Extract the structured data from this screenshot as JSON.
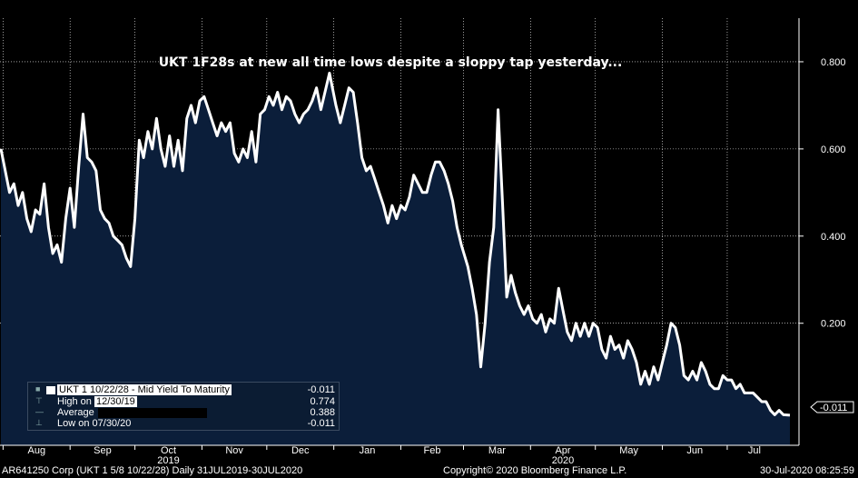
{
  "chart_data": {
    "type": "area",
    "title": "UKT 1F28s at new all time lows despite a sloppy tap yesterday...",
    "xlabel": "",
    "ylabel": "",
    "ylim": [
      -0.08,
      0.9
    ],
    "y_ticks": [
      "0.800",
      "0.600",
      "0.400",
      "0.200"
    ],
    "y_tick_values": [
      0.8,
      0.6,
      0.4,
      0.2
    ],
    "x_ticks": [
      {
        "label": "Aug",
        "date": "2019-08-01"
      },
      {
        "label": "Sep",
        "date": "2019-09-01"
      },
      {
        "label": "Oct",
        "date": "2019-10-01"
      },
      {
        "label": "Nov",
        "date": "2019-11-01"
      },
      {
        "label": "Dec",
        "date": "2019-12-01"
      },
      {
        "label": "Jan",
        "date": "2020-01-01"
      },
      {
        "label": "Feb",
        "date": "2020-02-01"
      },
      {
        "label": "Mar",
        "date": "2020-03-01"
      },
      {
        "label": "Apr",
        "date": "2020-04-01"
      },
      {
        "label": "May",
        "date": "2020-05-01"
      },
      {
        "label": "Jun",
        "date": "2020-06-01"
      },
      {
        "label": "Jul",
        "date": "2020-07-01"
      }
    ],
    "year_labels": [
      {
        "label": "2019",
        "date": "2019-10-01"
      },
      {
        "label": "2020",
        "date": "2020-04-01"
      }
    ],
    "last_value_label": "-0.011",
    "series": [
      {
        "name": "UKT 1  10/22/28 - Mid Yield To Maturity",
        "points": [
          [
            "2019-07-31",
            0.6
          ],
          [
            "2019-08-02",
            0.55
          ],
          [
            "2019-08-04",
            0.5
          ],
          [
            "2019-08-06",
            0.52
          ],
          [
            "2019-08-08",
            0.47
          ],
          [
            "2019-08-10",
            0.5
          ],
          [
            "2019-08-12",
            0.44
          ],
          [
            "2019-08-14",
            0.41
          ],
          [
            "2019-08-16",
            0.46
          ],
          [
            "2019-08-18",
            0.45
          ],
          [
            "2019-08-20",
            0.52
          ],
          [
            "2019-08-22",
            0.42
          ],
          [
            "2019-08-24",
            0.36
          ],
          [
            "2019-08-26",
            0.38
          ],
          [
            "2019-08-28",
            0.34
          ],
          [
            "2019-08-30",
            0.44
          ],
          [
            "2019-09-01",
            0.51
          ],
          [
            "2019-09-03",
            0.42
          ],
          [
            "2019-09-05",
            0.56
          ],
          [
            "2019-09-07",
            0.68
          ],
          [
            "2019-09-09",
            0.58
          ],
          [
            "2019-09-11",
            0.57
          ],
          [
            "2019-09-13",
            0.55
          ],
          [
            "2019-09-15",
            0.46
          ],
          [
            "2019-09-17",
            0.44
          ],
          [
            "2019-09-19",
            0.43
          ],
          [
            "2019-09-21",
            0.4
          ],
          [
            "2019-09-23",
            0.39
          ],
          [
            "2019-09-25",
            0.38
          ],
          [
            "2019-09-27",
            0.35
          ],
          [
            "2019-09-29",
            0.33
          ],
          [
            "2019-10-01",
            0.44
          ],
          [
            "2019-10-03",
            0.62
          ],
          [
            "2019-10-05",
            0.58
          ],
          [
            "2019-10-07",
            0.64
          ],
          [
            "2019-10-09",
            0.6
          ],
          [
            "2019-10-11",
            0.67
          ],
          [
            "2019-10-13",
            0.6
          ],
          [
            "2019-10-15",
            0.56
          ],
          [
            "2019-10-17",
            0.63
          ],
          [
            "2019-10-19",
            0.56
          ],
          [
            "2019-10-21",
            0.62
          ],
          [
            "2019-10-23",
            0.55
          ],
          [
            "2019-10-25",
            0.67
          ],
          [
            "2019-10-27",
            0.7
          ],
          [
            "2019-10-29",
            0.66
          ],
          [
            "2019-10-31",
            0.71
          ],
          [
            "2019-11-02",
            0.72
          ],
          [
            "2019-11-04",
            0.69
          ],
          [
            "2019-11-06",
            0.66
          ],
          [
            "2019-11-08",
            0.63
          ],
          [
            "2019-11-10",
            0.66
          ],
          [
            "2019-11-12",
            0.64
          ],
          [
            "2019-11-14",
            0.66
          ],
          [
            "2019-11-16",
            0.59
          ],
          [
            "2019-11-18",
            0.57
          ],
          [
            "2019-11-20",
            0.6
          ],
          [
            "2019-11-22",
            0.58
          ],
          [
            "2019-11-24",
            0.64
          ],
          [
            "2019-11-26",
            0.57
          ],
          [
            "2019-11-28",
            0.68
          ],
          [
            "2019-11-30",
            0.69
          ],
          [
            "2019-12-02",
            0.72
          ],
          [
            "2019-12-04",
            0.7
          ],
          [
            "2019-12-06",
            0.73
          ],
          [
            "2019-12-08",
            0.69
          ],
          [
            "2019-12-10",
            0.72
          ],
          [
            "2019-12-12",
            0.71
          ],
          [
            "2019-12-14",
            0.68
          ],
          [
            "2019-12-16",
            0.66
          ],
          [
            "2019-12-18",
            0.68
          ],
          [
            "2019-12-20",
            0.69
          ],
          [
            "2019-12-22",
            0.71
          ],
          [
            "2019-12-24",
            0.74
          ],
          [
            "2019-12-26",
            0.69
          ],
          [
            "2019-12-30",
            0.774
          ],
          [
            "2020-01-02",
            0.7
          ],
          [
            "2020-01-04",
            0.66
          ],
          [
            "2020-01-06",
            0.7
          ],
          [
            "2020-01-08",
            0.74
          ],
          [
            "2020-01-10",
            0.73
          ],
          [
            "2020-01-12",
            0.66
          ],
          [
            "2020-01-14",
            0.58
          ],
          [
            "2020-01-16",
            0.55
          ],
          [
            "2020-01-18",
            0.56
          ],
          [
            "2020-01-20",
            0.53
          ],
          [
            "2020-01-22",
            0.5
          ],
          [
            "2020-01-24",
            0.47
          ],
          [
            "2020-01-26",
            0.43
          ],
          [
            "2020-01-28",
            0.47
          ],
          [
            "2020-01-30",
            0.44
          ],
          [
            "2020-02-01",
            0.47
          ],
          [
            "2020-02-03",
            0.46
          ],
          [
            "2020-02-05",
            0.49
          ],
          [
            "2020-02-07",
            0.54
          ],
          [
            "2020-02-09",
            0.52
          ],
          [
            "2020-02-11",
            0.5
          ],
          [
            "2020-02-13",
            0.5
          ],
          [
            "2020-02-15",
            0.54
          ],
          [
            "2020-02-17",
            0.57
          ],
          [
            "2020-02-19",
            0.57
          ],
          [
            "2020-02-21",
            0.55
          ],
          [
            "2020-02-23",
            0.52
          ],
          [
            "2020-02-25",
            0.48
          ],
          [
            "2020-02-27",
            0.42
          ],
          [
            "2020-02-29",
            0.38
          ],
          [
            "2020-03-03",
            0.33
          ],
          [
            "2020-03-05",
            0.28
          ],
          [
            "2020-03-07",
            0.22
          ],
          [
            "2020-03-09",
            0.1
          ],
          [
            "2020-03-11",
            0.2
          ],
          [
            "2020-03-13",
            0.34
          ],
          [
            "2020-03-15",
            0.42
          ],
          [
            "2020-03-17",
            0.69
          ],
          [
            "2020-03-19",
            0.48
          ],
          [
            "2020-03-21",
            0.26
          ],
          [
            "2020-03-23",
            0.31
          ],
          [
            "2020-03-25",
            0.27
          ],
          [
            "2020-03-27",
            0.24
          ],
          [
            "2020-03-29",
            0.22
          ],
          [
            "2020-03-31",
            0.24
          ],
          [
            "2020-04-02",
            0.21
          ],
          [
            "2020-04-04",
            0.2
          ],
          [
            "2020-04-06",
            0.22
          ],
          [
            "2020-04-08",
            0.18
          ],
          [
            "2020-04-10",
            0.21
          ],
          [
            "2020-04-12",
            0.2
          ],
          [
            "2020-04-14",
            0.28
          ],
          [
            "2020-04-16",
            0.23
          ],
          [
            "2020-04-18",
            0.18
          ],
          [
            "2020-04-20",
            0.16
          ],
          [
            "2020-04-22",
            0.2
          ],
          [
            "2020-04-24",
            0.17
          ],
          [
            "2020-04-26",
            0.2
          ],
          [
            "2020-04-28",
            0.17
          ],
          [
            "2020-04-30",
            0.2
          ],
          [
            "2020-05-02",
            0.19
          ],
          [
            "2020-05-04",
            0.14
          ],
          [
            "2020-05-06",
            0.12
          ],
          [
            "2020-05-08",
            0.17
          ],
          [
            "2020-05-10",
            0.14
          ],
          [
            "2020-05-12",
            0.15
          ],
          [
            "2020-05-14",
            0.12
          ],
          [
            "2020-05-16",
            0.16
          ],
          [
            "2020-05-18",
            0.14
          ],
          [
            "2020-05-20",
            0.11
          ],
          [
            "2020-05-22",
            0.06
          ],
          [
            "2020-05-24",
            0.09
          ],
          [
            "2020-05-26",
            0.06
          ],
          [
            "2020-05-28",
            0.1
          ],
          [
            "2020-05-30",
            0.07
          ],
          [
            "2020-06-01",
            0.11
          ],
          [
            "2020-06-03",
            0.15
          ],
          [
            "2020-06-05",
            0.2
          ],
          [
            "2020-06-07",
            0.19
          ],
          [
            "2020-06-09",
            0.15
          ],
          [
            "2020-06-11",
            0.08
          ],
          [
            "2020-06-13",
            0.07
          ],
          [
            "2020-06-15",
            0.09
          ],
          [
            "2020-06-17",
            0.07
          ],
          [
            "2020-06-19",
            0.11
          ],
          [
            "2020-06-21",
            0.09
          ],
          [
            "2020-06-23",
            0.06
          ],
          [
            "2020-06-25",
            0.05
          ],
          [
            "2020-06-27",
            0.05
          ],
          [
            "2020-06-29",
            0.08
          ],
          [
            "2020-07-01",
            0.07
          ],
          [
            "2020-07-03",
            0.07
          ],
          [
            "2020-07-05",
            0.05
          ],
          [
            "2020-07-07",
            0.06
          ],
          [
            "2020-07-09",
            0.04
          ],
          [
            "2020-07-11",
            0.04
          ],
          [
            "2020-07-13",
            0.04
          ],
          [
            "2020-07-15",
            0.03
          ],
          [
            "2020-07-17",
            0.02
          ],
          [
            "2020-07-19",
            0.02
          ],
          [
            "2020-07-21",
            0.0
          ],
          [
            "2020-07-23",
            -0.01
          ],
          [
            "2020-07-25",
            0.0
          ],
          [
            "2020-07-27",
            -0.01
          ],
          [
            "2020-07-30",
            -0.011
          ]
        ]
      }
    ]
  },
  "legend": {
    "series_label": "UKT 1",
    "series_desc": "10/22/28 - Mid Yield To Maturity",
    "series_value": "-0.011",
    "high_label": "High on",
    "high_date": "12/30/19",
    "high_value": "0.774",
    "avg_label": "Average",
    "avg_value": "0.388",
    "low_label": "Low on 07/30/20",
    "low_value": "-0.011"
  },
  "footer": {
    "left": "AR641250 Corp (UKT 1 5/8 10/22/28)  Daily 31JUL2019-30JUL2020",
    "center": "Copyright© 2020 Bloomberg Finance L.P.",
    "right": "30-Jul-2020 08:25:59"
  },
  "colors": {
    "background": "#000000",
    "area_fill": "#0b1e3a",
    "line": "#ffffff",
    "grid": "#ffffff"
  }
}
